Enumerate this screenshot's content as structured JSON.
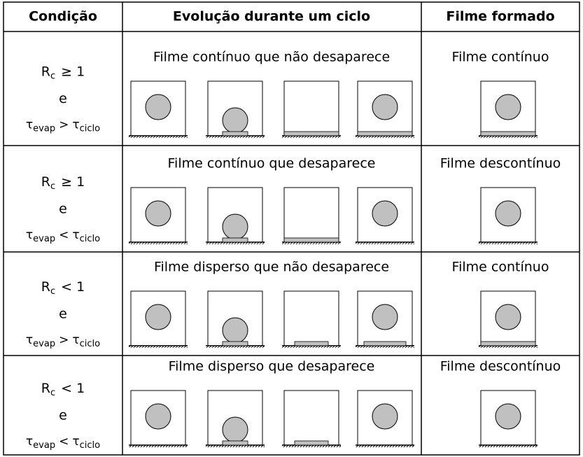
{
  "header": {
    "condition": "Condição",
    "evolution": "Evolução durante um ciclo",
    "film": "Filme formado"
  },
  "rows": [
    {
      "condition": {
        "symbol": "R",
        "symbol_sub": "c",
        "relation": "≥ 1",
        "conjunction": "e",
        "left": "τ",
        "left_sub": "evap",
        "comparison": ">",
        "right": "τ",
        "right_sub": "ciclo"
      },
      "evolution": "Filme contínuo que não desaparece",
      "film": "Filme contínuo"
    },
    {
      "condition": {
        "symbol": "R",
        "symbol_sub": "c",
        "relation": "≥ 1",
        "conjunction": "e",
        "left": "τ",
        "left_sub": "evap",
        "comparison": "<",
        "right": "τ",
        "right_sub": "ciclo"
      },
      "evolution": "Filme contínuo que desaparece",
      "film": "Filme descontínuo"
    },
    {
      "condition": {
        "symbol": "R",
        "symbol_sub": "c",
        "relation": "< 1",
        "conjunction": "e",
        "left": "τ",
        "left_sub": "evap",
        "comparison": ">",
        "right": "τ",
        "right_sub": "ciclo"
      },
      "evolution": "Filme disperso que não desaparece",
      "film": "Filme contínuo"
    },
    {
      "condition": {
        "symbol": "R",
        "symbol_sub": "c",
        "relation": "< 1",
        "conjunction": "e",
        "left": "τ",
        "left_sub": "evap",
        "comparison": "<",
        "right": "τ",
        "right_sub": "ciclo"
      },
      "evolution": "Filme disperso que desaparece",
      "film": "Filme descontínuo"
    }
  ]
}
